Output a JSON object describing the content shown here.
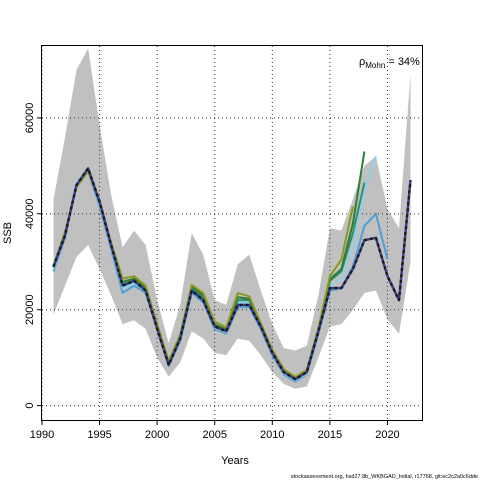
{
  "chart_data": {
    "type": "line",
    "title": "",
    "xlabel": "Years",
    "ylabel": "SSB",
    "xlim": [
      1990,
      2023
    ],
    "ylim": [
      -3000,
      75000
    ],
    "x_ticks": [
      1990,
      1995,
      2000,
      2005,
      2010,
      2015,
      2020
    ],
    "y_ticks": [
      0,
      20000,
      40000,
      60000
    ],
    "grid": true,
    "grid_style": "dotted",
    "legend": "none",
    "annotation": {
      "prefix": "ρ",
      "subscript": "Mohn",
      "suffix": " = 34%"
    },
    "caption": "stockassessment.org, hsd27.8b_WKBGAD_Initial, r17768, git:ec2c2a0c6dde",
    "confidence_band": {
      "x": [
        1991,
        1992,
        1993,
        1994,
        1995,
        1996,
        1997,
        1998,
        1999,
        2000,
        2001,
        2002,
        2003,
        2004,
        2005,
        2006,
        2007,
        2008,
        2009,
        2010,
        2011,
        2012,
        2013,
        2014,
        2015,
        2016,
        2017,
        2018,
        2019,
        2020,
        2021,
        2022
      ],
      "lower": [
        19000,
        25000,
        31000,
        33500,
        28500,
        23000,
        17000,
        17800,
        16000,
        10000,
        6000,
        9000,
        15500,
        14000,
        11000,
        10500,
        14000,
        13500,
        10500,
        7000,
        4500,
        3500,
        4000,
        10000,
        16500,
        17000,
        20000,
        23500,
        24000,
        18000,
        15000,
        30000
      ],
      "upper": [
        43000,
        56000,
        70000,
        74500,
        58500,
        44000,
        33000,
        36500,
        33500,
        22000,
        13000,
        21000,
        36000,
        31500,
        22000,
        21000,
        29500,
        31500,
        24000,
        17000,
        12000,
        11500,
        12500,
        23000,
        37000,
        36500,
        43000,
        50000,
        52000,
        41000,
        37000,
        69000
      ],
      "color": "#c0c0c0"
    },
    "series": [
      {
        "color": "#1a1a1a",
        "dashed": true,
        "x": [
          1991,
          1992,
          1993,
          1994,
          1995,
          1996,
          1997,
          1998,
          1999,
          2000,
          2001,
          2002,
          2003,
          2004,
          2005,
          2006,
          2007,
          2008,
          2009,
          2010,
          2011,
          2012,
          2013,
          2014,
          2015,
          2016,
          2017,
          2018,
          2019,
          2020,
          2021,
          2022
        ],
        "values": [
          29000,
          35500,
          46000,
          49500,
          42500,
          33500,
          25000,
          26000,
          24000,
          16000,
          8500,
          14000,
          24000,
          22000,
          16500,
          15500,
          21000,
          21000,
          16500,
          11000,
          7000,
          5500,
          7000,
          15500,
          24500,
          24500,
          28500,
          34500,
          35000,
          27000,
          22000,
          47000
        ]
      },
      {
        "color": "#4e9fd6",
        "x": [
          1991,
          1992,
          1993,
          1994,
          1995,
          1996,
          1997,
          1998,
          1999,
          2000,
          2001,
          2002,
          2003,
          2004,
          2005,
          2006,
          2007,
          2008,
          2009,
          2010,
          2011,
          2012,
          2013,
          2014,
          2015,
          2016,
          2017,
          2018,
          2019,
          2020
        ],
        "values": [
          28000,
          35000,
          46500,
          49000,
          41500,
          32500,
          23500,
          25000,
          23500,
          16000,
          8300,
          13500,
          23500,
          21500,
          16000,
          15000,
          20500,
          20500,
          16000,
          10500,
          6500,
          5000,
          6500,
          15000,
          24000,
          24500,
          29000,
          37500,
          40000,
          30500
        ]
      },
      {
        "color": "#8fd0e8",
        "x": [
          1991,
          1992,
          1993,
          1994,
          1995,
          1996,
          1997,
          1998,
          1999,
          2000,
          2001,
          2002,
          2003,
          2004,
          2005,
          2006,
          2007,
          2008,
          2009,
          2010,
          2011,
          2012,
          2013,
          2014,
          2015,
          2016,
          2017,
          2018,
          2019
        ],
        "values": [
          28500,
          35500,
          46500,
          49500,
          42000,
          33000,
          24500,
          25500,
          24000,
          16200,
          8600,
          14000,
          24200,
          22200,
          16300,
          15300,
          21500,
          21500,
          16400,
          10800,
          6800,
          5300,
          6700,
          15300,
          25000,
          26500,
          33000,
          45000,
          52000
        ]
      },
      {
        "color": "#2f8f6e",
        "x": [
          1991,
          1992,
          1993,
          1994,
          1995,
          1996,
          1997,
          1998,
          1999,
          2000,
          2001,
          2002,
          2003,
          2004,
          2005,
          2006,
          2007,
          2008,
          2009,
          2010,
          2011,
          2012,
          2013,
          2014,
          2015,
          2016,
          2017,
          2018
        ],
        "values": [
          28800,
          35800,
          46000,
          49500,
          42300,
          33400,
          25300,
          26200,
          24300,
          16300,
          8800,
          14200,
          24500,
          22600,
          16500,
          15600,
          22000,
          22000,
          16600,
          11100,
          7000,
          5500,
          7000,
          15600,
          26000,
          28000,
          36000,
          46500
        ]
      },
      {
        "color": "#2e7d32",
        "x": [
          1991,
          1992,
          1993,
          1994,
          1995,
          1996,
          1997,
          1998,
          1999,
          2000,
          2001,
          2002,
          2003,
          2004,
          2005,
          2006,
          2007,
          2008,
          2009,
          2010,
          2011,
          2012,
          2013,
          2014,
          2015,
          2016,
          2017,
          2018
        ],
        "values": [
          28900,
          35900,
          45800,
          49000,
          42500,
          33600,
          25800,
          26500,
          24600,
          16600,
          9000,
          14500,
          24900,
          23000,
          16900,
          15900,
          22600,
          22300,
          16900,
          11300,
          7200,
          5700,
          7200,
          15800,
          26300,
          28500,
          38000,
          53000
        ]
      },
      {
        "color": "#8a9a20",
        "x": [
          1991,
          1992,
          1993,
          1994,
          1995,
          1996,
          1997,
          1998,
          1999,
          2000,
          2001,
          2002,
          2003,
          2004,
          2005,
          2006,
          2007,
          2008,
          2009,
          2010,
          2011,
          2012,
          2013,
          2014,
          2015,
          2016,
          2017
        ],
        "values": [
          29200,
          36200,
          45600,
          48800,
          42800,
          34000,
          26500,
          27000,
          25000,
          17000,
          9300,
          14800,
          25200,
          23500,
          17500,
          16300,
          23500,
          22800,
          17200,
          11700,
          7600,
          6000,
          7500,
          16200,
          27000,
          30500,
          41500
        ]
      }
    ]
  }
}
